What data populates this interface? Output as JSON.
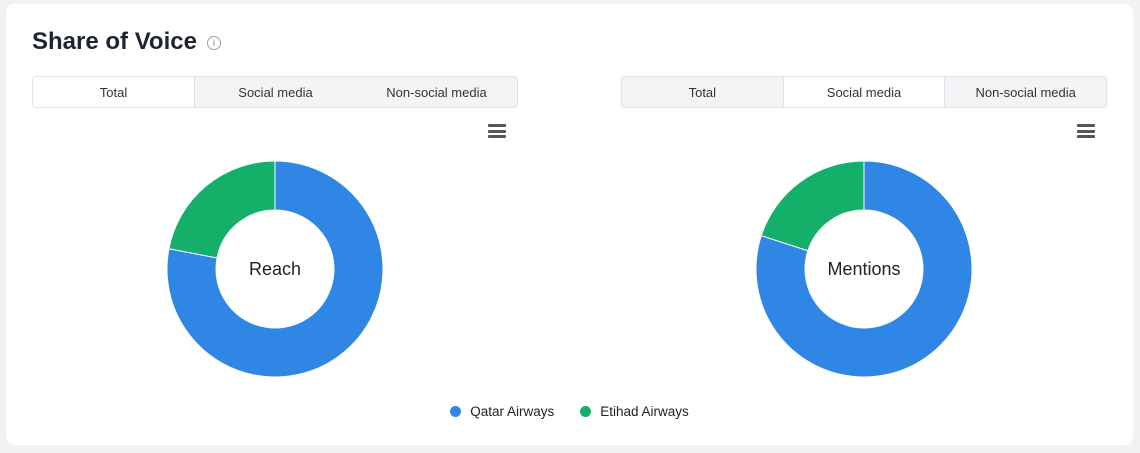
{
  "header": {
    "title": "Share of Voice",
    "info_icon": "info-icon"
  },
  "left_panel": {
    "tabs": [
      {
        "label": "Total",
        "active": true
      },
      {
        "label": "Social media",
        "active": false
      },
      {
        "label": "Non-social media",
        "active": false
      }
    ],
    "menu_icon": "hamburger-menu-icon"
  },
  "right_panel": {
    "tabs": [
      {
        "label": "Total",
        "active": false
      },
      {
        "label": "Social media",
        "active": true
      },
      {
        "label": "Non-social media",
        "active": false
      }
    ],
    "menu_icon": "hamburger-menu-icon"
  },
  "legend": [
    {
      "label": "Qatar Airways",
      "color": "#2f86e4"
    },
    {
      "label": "Etihad Airways",
      "color": "#14b06a"
    }
  ],
  "chart_data": [
    {
      "type": "pie",
      "title": "",
      "center_label": "Reach",
      "series": [
        {
          "name": "Qatar Airways",
          "value": 78,
          "color": "#2f86e4"
        },
        {
          "name": "Etihad Airways",
          "value": 22,
          "color": "#14b06a"
        }
      ]
    },
    {
      "type": "pie",
      "title": "",
      "center_label": "Mentions",
      "series": [
        {
          "name": "Qatar Airways",
          "value": 80,
          "color": "#2f86e4"
        },
        {
          "name": "Etihad Airways",
          "value": 20,
          "color": "#14b06a"
        }
      ]
    }
  ]
}
